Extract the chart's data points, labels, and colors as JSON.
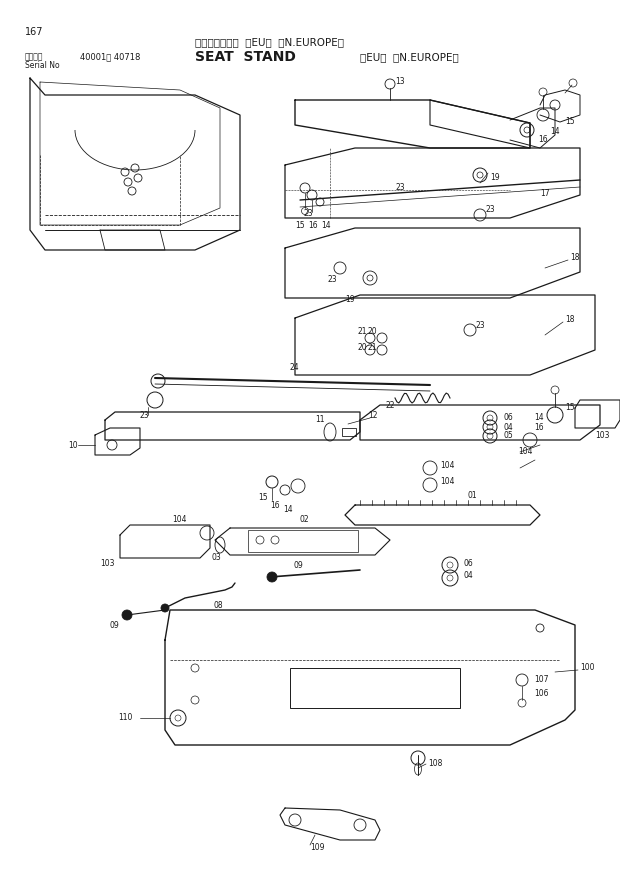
{
  "page_number": "167",
  "title_japanese": "シートスタンド  ＜EU＞  ＜N.EUROPE＞",
  "title_english": "SEAT  STAND",
  "title_english2": "＜EU＞  ＜N.EUROPE＞",
  "serial_label1": "適用号機",
  "serial_label2": "Serial No",
  "serial_range": "40001～ 40718",
  "bg_color": "#ffffff",
  "line_color": "#1a1a1a",
  "text_color": "#1a1a1a",
  "fig_width": 6.2,
  "fig_height": 8.73,
  "dpi": 100
}
